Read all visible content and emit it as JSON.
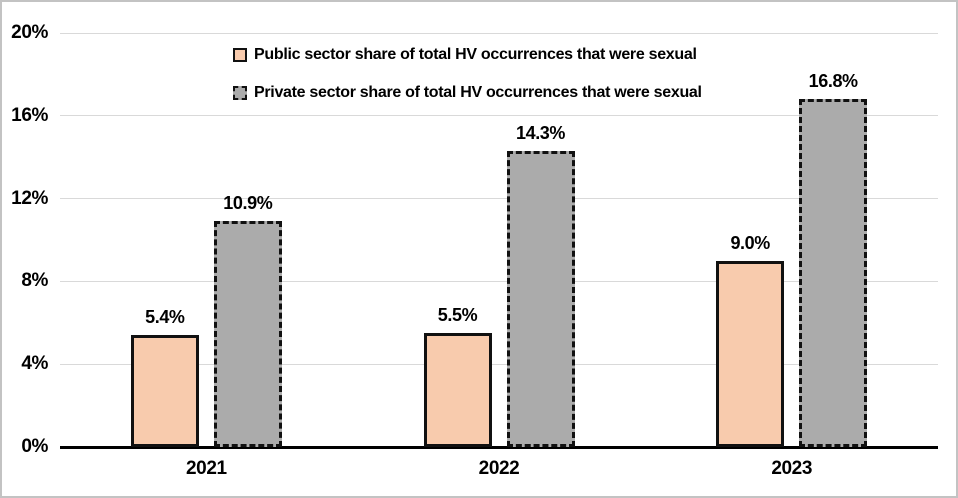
{
  "chart_data": {
    "type": "bar",
    "title": "",
    "xlabel": "",
    "ylabel": "",
    "categories": [
      "2021",
      "2022",
      "2023"
    ],
    "series": [
      {
        "name": "Public sector share of total HV occurrences that were sexual",
        "values": [
          5.4,
          5.5,
          9.0
        ],
        "labels": [
          "5.4%",
          "5.5%",
          "9.0%"
        ],
        "fill": "#F8CBAD",
        "border_color": "#111111",
        "border_style": "solid"
      },
      {
        "name": "Private sector share of total HV occurrences that were sexual",
        "values": [
          10.9,
          14.3,
          16.8
        ],
        "labels": [
          "10.9%",
          "14.3%",
          "16.8%"
        ],
        "fill": "#ABABAB",
        "border_color": "#111111",
        "border_style": "dashed"
      }
    ],
    "ylim": [
      0,
      20
    ],
    "yticks": [
      {
        "value": 0,
        "label": "0%"
      },
      {
        "value": 4,
        "label": "4%"
      },
      {
        "value": 8,
        "label": "8%"
      },
      {
        "value": 12,
        "label": "12%"
      },
      {
        "value": 16,
        "label": "16%"
      },
      {
        "value": 20,
        "label": "20%"
      }
    ],
    "grid": true,
    "legend_position": "top-center",
    "colors": {
      "gridline": "#d9d9d9",
      "axis": "#000000",
      "text": "#000000",
      "frame_border": "#c3c3c3"
    }
  }
}
